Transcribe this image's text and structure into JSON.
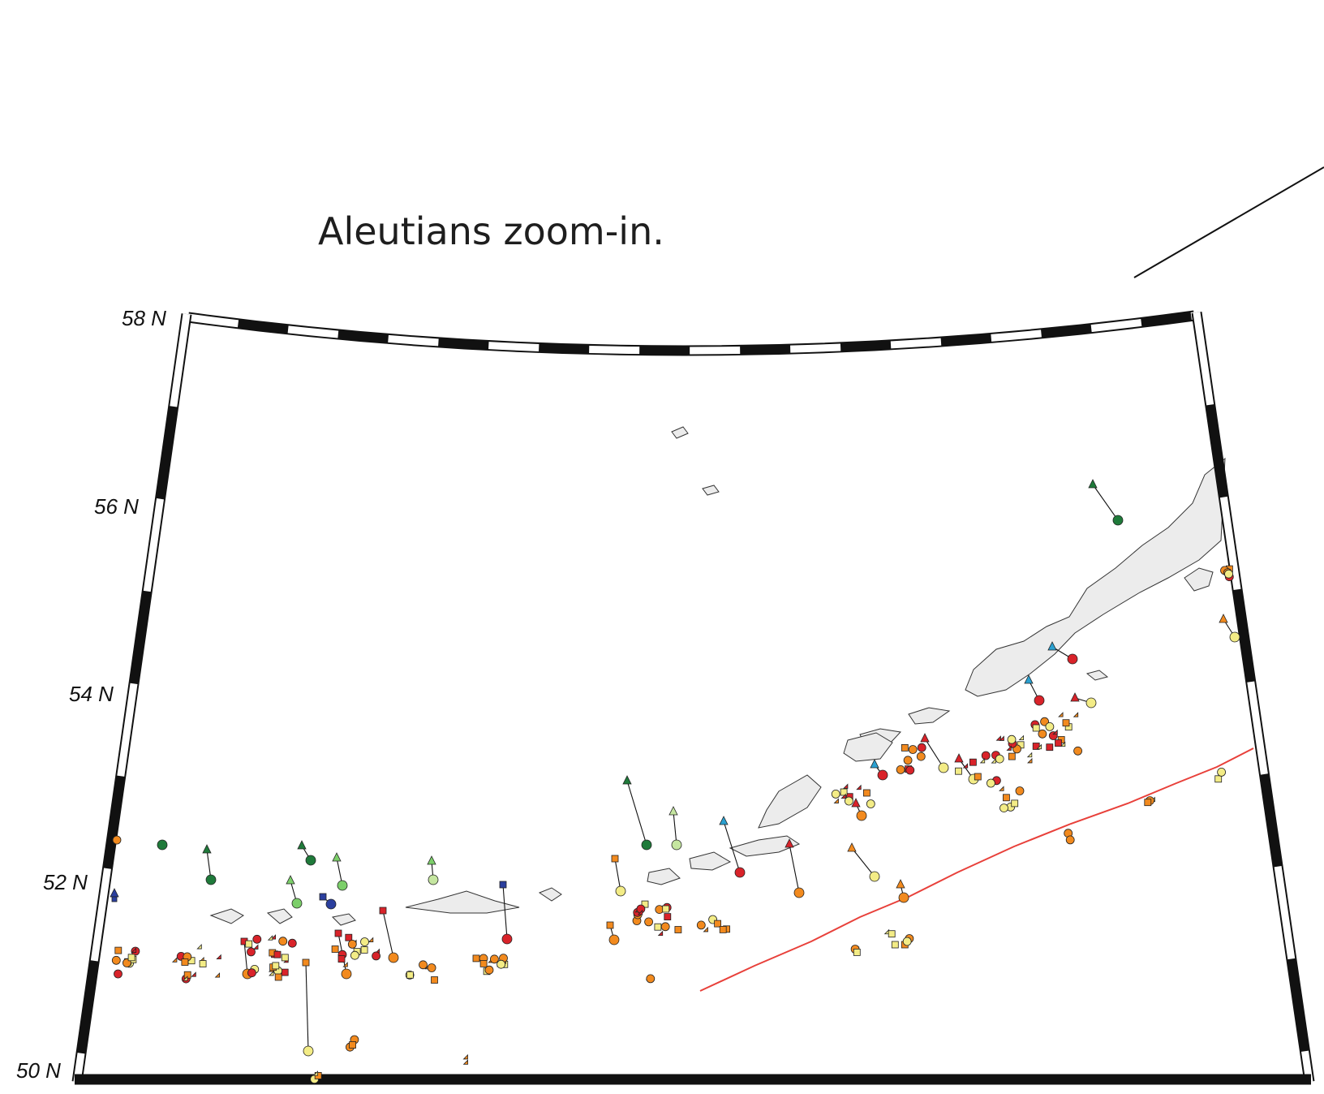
{
  "caption": "Aleutians zoom-in.",
  "latitude_labels": [
    "58 N",
    "56 N",
    "54 N",
    "52 N",
    "50 N"
  ],
  "colors": {
    "trench": "#e8403a",
    "land": "#ececec",
    "dark_green": "#1f7a3a",
    "light_green": "#7ccf6a",
    "pale_green": "#c5e6a0",
    "blue": "#2b3f9e",
    "cyan": "#2aa0d0",
    "red": "#d9232a",
    "orange": "#f28a1e",
    "pale_yellow": "#f3ec86"
  },
  "symbols": [
    "circle",
    "triangle",
    "square"
  ]
}
